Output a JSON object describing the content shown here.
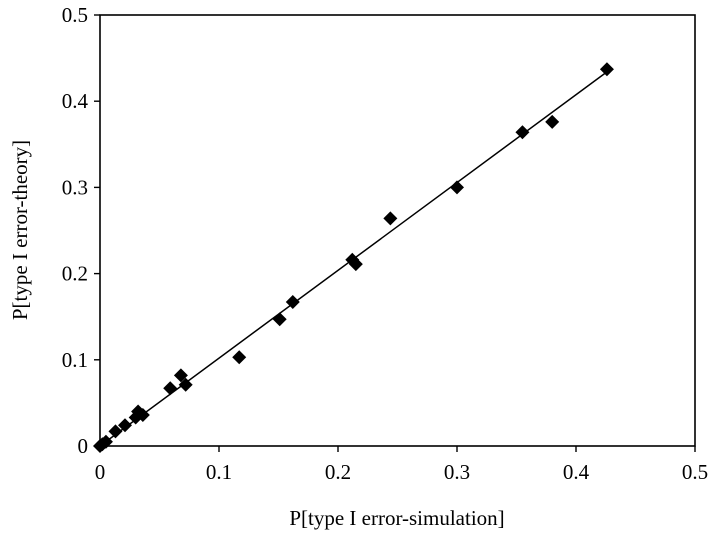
{
  "chart_data": {
    "type": "scatter",
    "xlabel": "P[type I error-simulation]",
    "ylabel": "P[type I error-theory]",
    "xlim": [
      0,
      0.5
    ],
    "ylim": [
      0,
      0.5
    ],
    "x_ticks": [
      "0",
      "0.1",
      "0.2",
      "0.3",
      "0.4",
      "0.5"
    ],
    "y_ticks": [
      "0",
      "0.1",
      "0.2",
      "0.3",
      "0.4",
      "0.5"
    ],
    "grid": false,
    "legend": "none",
    "marker": "diamond",
    "marker_color": "#000000",
    "points": [
      {
        "x": 0.0,
        "y": 0.0
      },
      {
        "x": 0.002,
        "y": 0.002
      },
      {
        "x": 0.005,
        "y": 0.005
      },
      {
        "x": 0.013,
        "y": 0.017
      },
      {
        "x": 0.021,
        "y": 0.024
      },
      {
        "x": 0.03,
        "y": 0.033
      },
      {
        "x": 0.032,
        "y": 0.04
      },
      {
        "x": 0.036,
        "y": 0.036
      },
      {
        "x": 0.059,
        "y": 0.067
      },
      {
        "x": 0.068,
        "y": 0.082
      },
      {
        "x": 0.072,
        "y": 0.071
      },
      {
        "x": 0.117,
        "y": 0.103
      },
      {
        "x": 0.151,
        "y": 0.147
      },
      {
        "x": 0.162,
        "y": 0.167
      },
      {
        "x": 0.212,
        "y": 0.216
      },
      {
        "x": 0.215,
        "y": 0.211
      },
      {
        "x": 0.244,
        "y": 0.264
      },
      {
        "x": 0.3,
        "y": 0.3
      },
      {
        "x": 0.355,
        "y": 0.364
      },
      {
        "x": 0.38,
        "y": 0.376
      },
      {
        "x": 0.426,
        "y": 0.437
      }
    ],
    "trendline": {
      "type": "linear",
      "x": [
        0,
        0.426
      ],
      "y": [
        0,
        0.434
      ]
    }
  }
}
